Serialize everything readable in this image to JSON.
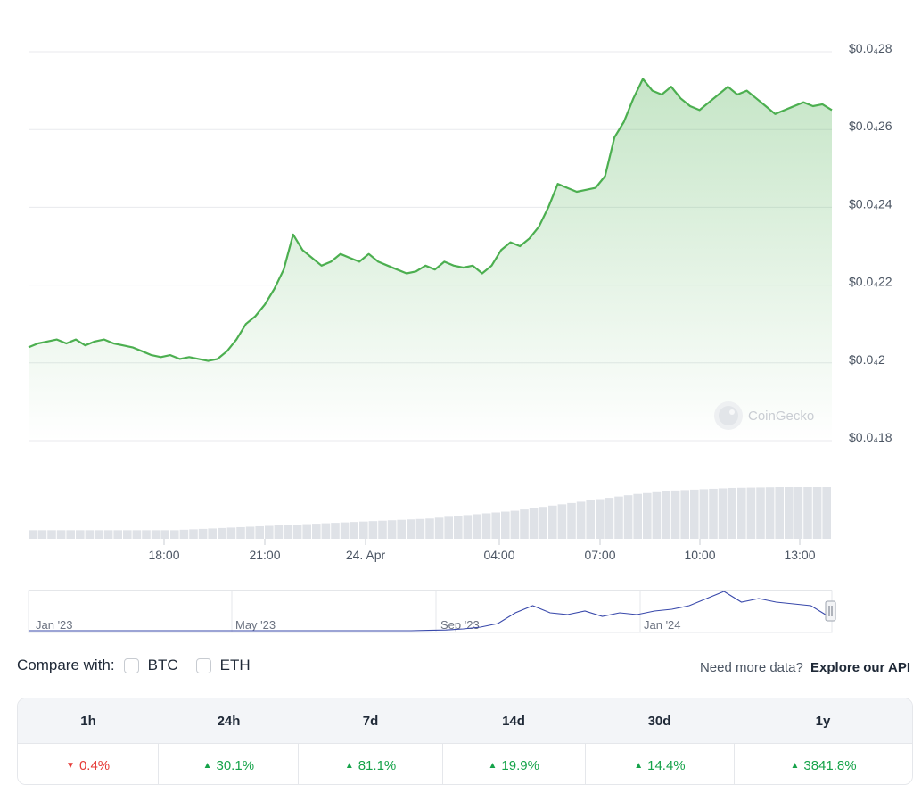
{
  "chart_data": {
    "type": "area",
    "color": "#4caf50",
    "y_axis": {
      "position": "right",
      "min": 18,
      "max": 28,
      "ticks": [
        {
          "value": 28,
          "label": "$0.0₄28"
        },
        {
          "value": 26,
          "label": "$0.0₄26"
        },
        {
          "value": 24,
          "label": "$0.0₄24"
        },
        {
          "value": 22,
          "label": "$0.0₄22"
        },
        {
          "value": 20,
          "label": "$0.0₄2"
        },
        {
          "value": 18,
          "label": "$0.0₄18"
        }
      ]
    },
    "x_axis": {
      "ticks": [
        "18:00",
        "21:00",
        "24. Apr",
        "04:00",
        "07:00",
        "10:00",
        "13:00"
      ]
    },
    "series": [
      {
        "values": [
          20.4,
          20.5,
          20.55,
          20.6,
          20.5,
          20.6,
          20.45,
          20.55,
          20.6,
          20.5,
          20.45,
          20.4,
          20.3,
          20.2,
          20.15,
          20.2,
          20.1,
          20.15,
          20.1,
          20.05,
          20.1,
          20.3,
          20.6,
          21.0,
          21.2,
          21.5,
          21.9,
          22.4,
          23.3,
          22.9,
          22.7,
          22.5,
          22.6,
          22.8,
          22.7,
          22.6,
          22.8,
          22.6,
          22.5,
          22.4,
          22.3,
          22.35,
          22.5,
          22.4,
          22.6,
          22.5,
          22.45,
          22.5,
          22.3,
          22.5,
          22.9,
          23.1,
          23.0,
          23.2,
          23.5,
          24.0,
          24.6,
          24.5,
          24.4,
          24.45,
          24.5,
          24.8,
          25.8,
          26.2,
          26.8,
          27.3,
          27.0,
          26.9,
          27.1,
          26.8,
          26.6,
          26.5,
          26.7,
          26.9,
          27.1,
          26.9,
          27.0,
          26.8,
          26.6,
          26.4,
          26.5,
          26.6,
          26.7,
          26.6,
          26.65,
          26.5
        ]
      }
    ],
    "volume": [
      1,
      1,
      1,
      1,
      1,
      1,
      1,
      1,
      1,
      1,
      1,
      1,
      1,
      1,
      1,
      1,
      1.05,
      1.1,
      1.15,
      1.2,
      1.25,
      1.3,
      1.35,
      1.4,
      1.45,
      1.5,
      1.55,
      1.6,
      1.65,
      1.7,
      1.75,
      1.8,
      1.85,
      1.9,
      1.95,
      2,
      2.05,
      2.1,
      2.15,
      2.2,
      2.25,
      2.3,
      2.35,
      2.45,
      2.55,
      2.65,
      2.75,
      2.85,
      2.95,
      3.05,
      3.15,
      3.25,
      3.4,
      3.55,
      3.7,
      3.85,
      4,
      4.15,
      4.3,
      4.45,
      4.6,
      4.75,
      4.9,
      5.05,
      5.2,
      5.3,
      5.4,
      5.5,
      5.6,
      5.65,
      5.7,
      5.75,
      5.8,
      5.85,
      5.9,
      5.92,
      5.94,
      5.96,
      5.98,
      6,
      6,
      6,
      6,
      6,
      6
    ],
    "navigator": {
      "labels": [
        "Jan '23",
        "May '23",
        "Sep '23",
        "Jan '24"
      ],
      "values": [
        1,
        1,
        1,
        1,
        1,
        1,
        1,
        1,
        1,
        1,
        1,
        1,
        1,
        1,
        1,
        1,
        1,
        1,
        1,
        1,
        1,
        1,
        1,
        1.1,
        1.2,
        1.5,
        2,
        3,
        6,
        8,
        6,
        5.5,
        6.5,
        5,
        6,
        5.5,
        6.5,
        7,
        8,
        10,
        12,
        9,
        10,
        9,
        8.5,
        8,
        5
      ]
    },
    "watermark": "CoinGecko"
  },
  "compare": {
    "label": "Compare with:",
    "options": [
      "BTC",
      "ETH"
    ]
  },
  "api": {
    "prompt": "Need more data?",
    "link": "Explore our API"
  },
  "performance": {
    "headers": [
      "1h",
      "24h",
      "7d",
      "14d",
      "30d",
      "1y"
    ],
    "values": [
      {
        "value": "0.4%",
        "direction": "down"
      },
      {
        "value": "30.1%",
        "direction": "up"
      },
      {
        "value": "81.1%",
        "direction": "up"
      },
      {
        "value": "19.9%",
        "direction": "up"
      },
      {
        "value": "14.4%",
        "direction": "up"
      },
      {
        "value": "3841.8%",
        "direction": "up"
      }
    ]
  }
}
